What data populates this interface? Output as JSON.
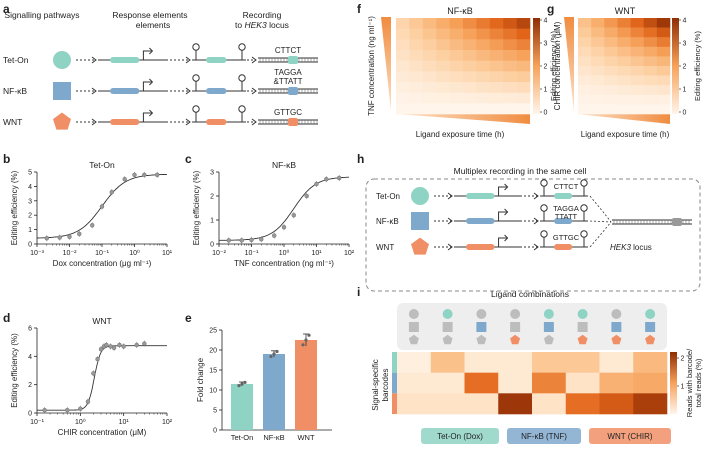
{
  "panel_a": {
    "letter": "a",
    "headers": [
      "Signalling pathways",
      "Response elements",
      "Recording"
    ],
    "header_recording_line2_prefix": "to ",
    "header_recording_line2_italic": "HEK3",
    "header_recording_line2_suffix": " locus",
    "rows": [
      {
        "name": "Tet-On",
        "barcode": [
          "CTTCT"
        ],
        "color": "#8fd3c4"
      },
      {
        "name": "NF-κB",
        "barcode": [
          "TAGGA",
          "&TTATT"
        ],
        "color": "#7fa9cc"
      },
      {
        "name": "WNT",
        "barcode": [
          "GTTGC"
        ],
        "color": "#f08f66"
      }
    ]
  },
  "panel_f": {
    "letter": "f",
    "title": "NF-κB",
    "ylabel": "TNF concentration (ng ml⁻¹)",
    "xlabel": "Ligand exposure time (h)",
    "cbar_label": "Editing efficiency (%)",
    "cbar_ticks": [
      "4",
      "3",
      "2",
      "1",
      "0"
    ]
  },
  "panel_g": {
    "letter": "g",
    "title": "WNT",
    "ylabel": "CHIR concentration (μM)",
    "xlabel": "Ligand exposure time (h)",
    "cbar_label": "Editing efficiency (%)",
    "cbar_ticks": [
      "4",
      "3",
      "2",
      "1",
      "0"
    ]
  },
  "panel_h": {
    "letter": "h",
    "title": "Multiplex recording in the same cell",
    "rows": [
      "Tet-On",
      "NF-κB",
      "WNT"
    ],
    "barcodes": [
      "CTTCT",
      "TAGGA",
      "TTATT",
      "GTTGC"
    ],
    "locus_italic": "HEK3",
    "locus_suffix": " locus"
  },
  "panel_i": {
    "letter": "i",
    "title": "Ligand combinations",
    "ylabel1": "Signal-specific",
    "ylabel2": "barcodes",
    "cbar_label1": "Reads with barcode/",
    "cbar_label2": "total reads (%)",
    "cbar_ticks": [
      "2",
      "1"
    ],
    "legend": [
      "Tet-On (Dox)",
      "NF-κB (TNF)",
      "WNT (CHIR)"
    ]
  },
  "chart_data": [
    {
      "panel": "b",
      "type": "scatter",
      "title": "Tet-On",
      "xlabel": "Dox concentration (μg ml⁻¹)",
      "ylabel": "Editing efficiency (%)",
      "xscale": "log",
      "xlim": [
        0.001,
        10
      ],
      "ylim": [
        0,
        5
      ],
      "xticks": [
        "10⁻³",
        "10⁻²",
        "10⁻¹",
        "10⁰",
        "10¹"
      ],
      "yticks": [
        "0",
        "1",
        "2",
        "3",
        "4",
        "5"
      ],
      "x": [
        0.002,
        0.005,
        0.01,
        0.02,
        0.05,
        0.1,
        0.2,
        0.5,
        1,
        2,
        5
      ],
      "y": [
        0.4,
        0.45,
        0.5,
        0.7,
        1.3,
        2.6,
        3.6,
        4.5,
        4.8,
        4.8,
        4.8
      ],
      "fit": {
        "bottom": 0.4,
        "top": 4.85,
        "ec50": 0.1,
        "hill": 1.2
      }
    },
    {
      "panel": "c",
      "type": "scatter",
      "title": "NF-κB",
      "xlabel": "TNF concentration (ng ml⁻¹)",
      "ylabel": "Editing efficiency (%)",
      "xscale": "log",
      "xlim": [
        0.01,
        100
      ],
      "ylim": [
        0,
        3
      ],
      "xticks": [
        "10⁻²",
        "10⁻¹",
        "10⁰",
        "10¹",
        "10²"
      ],
      "yticks": [
        "0",
        "1",
        "2",
        "3"
      ],
      "x": [
        0.02,
        0.05,
        0.1,
        0.2,
        0.5,
        1,
        2,
        5,
        10,
        20,
        50
      ],
      "y": [
        0.15,
        0.15,
        0.17,
        0.2,
        0.35,
        0.7,
        1.2,
        2.0,
        2.5,
        2.7,
        2.75
      ],
      "fit": {
        "bottom": 0.15,
        "top": 2.8,
        "ec50": 2.0,
        "hill": 1.3
      }
    },
    {
      "panel": "d",
      "type": "scatter",
      "title": "WNT",
      "xlabel": "CHIR concentration (μM)",
      "ylabel": "Editing efficiency (%)",
      "xscale": "log",
      "xlim": [
        0.1,
        100
      ],
      "ylim": [
        0,
        6
      ],
      "xticks": [
        "10⁻¹",
        "10⁰",
        "10¹",
        "10²"
      ],
      "yticks": [
        "0",
        "2",
        "4",
        "6"
      ],
      "x": [
        0.15,
        0.5,
        1,
        1.5,
        2,
        2.5,
        3,
        3.5,
        4,
        5,
        6,
        8,
        10,
        20,
        30
      ],
      "y": [
        0.2,
        0.2,
        0.3,
        0.8,
        2.8,
        3.8,
        4.5,
        4.7,
        4.8,
        4.7,
        4.6,
        4.8,
        4.7,
        4.8,
        4.9
      ],
      "fit": {
        "bottom": 0.2,
        "top": 4.75,
        "ec50": 2.1,
        "hill": 6
      }
    },
    {
      "panel": "e",
      "type": "bar",
      "ylabel": "Fold change",
      "categories": [
        "Tet-On",
        "NF-κB",
        "WNT"
      ],
      "values": [
        11.5,
        19,
        22.5
      ],
      "errors": [
        0.5,
        0.8,
        1.5
      ],
      "ylim": [
        0,
        25
      ],
      "yticks": [
        "0",
        "5",
        "10",
        "15",
        "20",
        "25"
      ],
      "colors": [
        "#8fd3c4",
        "#7fa9cc",
        "#f08f66"
      ]
    },
    {
      "panel": "i",
      "type": "heatmap",
      "rows": [
        "Tet-On barcode",
        "NF-κB barcode",
        "WNT barcode"
      ],
      "columns": [
        "none",
        "Dox",
        "TNF",
        "CHIR",
        "Dox+TNF",
        "Dox+CHIR",
        "TNF+CHIR",
        "Dox+TNF+CHIR"
      ],
      "values": [
        [
          0.1,
          0.8,
          0.2,
          0.2,
          0.7,
          0.7,
          0.2,
          0.9
        ],
        [
          0.2,
          0.2,
          1.7,
          0.2,
          1.5,
          0.3,
          1.0,
          1.1
        ],
        [
          0.3,
          0.3,
          0.3,
          2.3,
          0.3,
          1.7,
          1.9,
          2.2
        ]
      ],
      "vmax": 2.4
    }
  ]
}
